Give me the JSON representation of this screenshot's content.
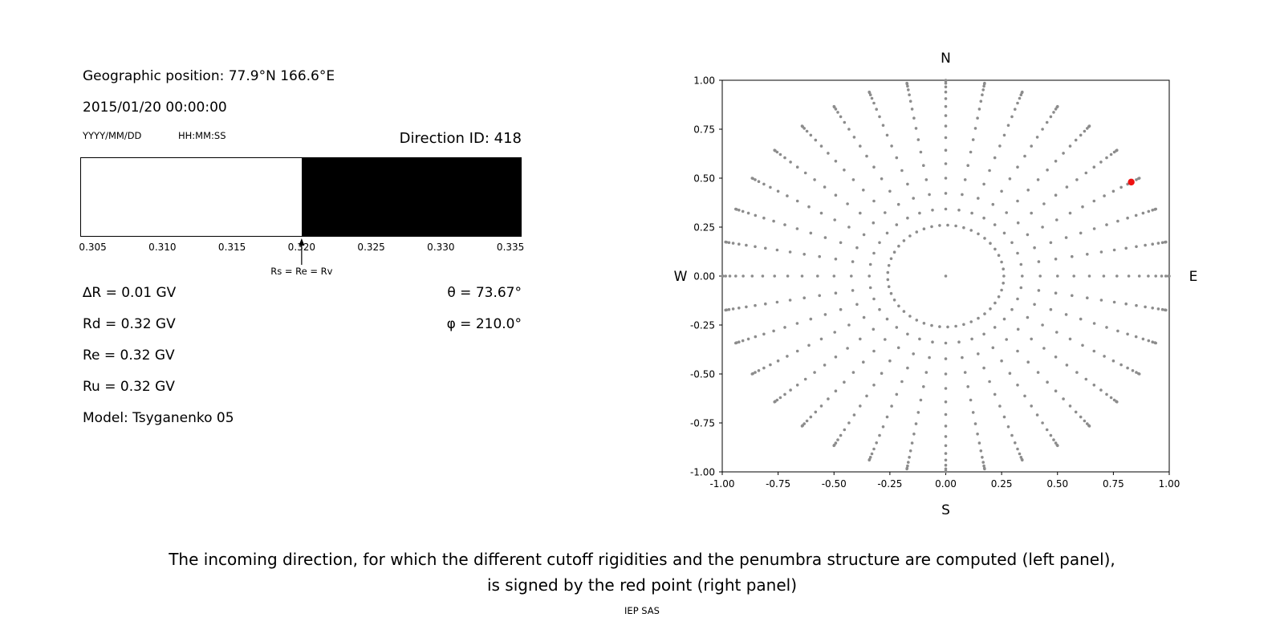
{
  "left_panel": {
    "geo_position": "Geographic position: 77.9°N 166.6°E",
    "datetime": "2015/01/20 00:00:00",
    "date_format_label": "YYYY/MM/DD",
    "time_format_label": "HH:MM:SS",
    "direction_id_label": "Direction ID: 418",
    "params_left": [
      "∆R = 0.01 GV",
      "Rd = 0.32 GV",
      "Re = 0.32 GV",
      "Ru = 0.32 GV",
      "Model: Tsyganenko 05"
    ],
    "params_right": [
      "θ  = 73.67°",
      "φ = 210.0°"
    ]
  },
  "caption": {
    "line1": "The incoming direction, for which the different cutoff rigidities and the penumbra structure are computed (left panel),",
    "line2": "is signed by the red point (right panel)",
    "credit": "IEP SAS"
  },
  "chart_data": [
    {
      "type": "bar",
      "title": "penumbra structure",
      "x_range": [
        0.3041,
        0.3358
      ],
      "x_ticks": [
        "0.305",
        "0.310",
        "0.315",
        "0.320",
        "0.325",
        "0.330",
        "0.335"
      ],
      "x_tick_values": [
        0.305,
        0.31,
        0.315,
        0.32,
        0.325,
        0.33,
        0.335
      ],
      "regions": [
        {
          "from": 0.3041,
          "to": 0.32,
          "color": "#ffffff"
        },
        {
          "from": 0.32,
          "to": 0.3358,
          "color": "#000000"
        }
      ],
      "annotation": {
        "value": 0.32,
        "label": "Rs = Re = Rv"
      }
    },
    {
      "type": "scatter",
      "xlim": [
        -1.0,
        1.0
      ],
      "ylim": [
        -1.0,
        1.0
      ],
      "x_ticks": [
        "-1.00",
        "-0.75",
        "-0.50",
        "-0.25",
        "0.00",
        "0.25",
        "0.50",
        "0.75",
        "1.00"
      ],
      "x_tick_values": [
        -1.0,
        -0.75,
        -0.5,
        -0.25,
        0.0,
        0.25,
        0.5,
        0.75,
        1.0
      ],
      "y_ticks": [
        "-1.00",
        "-0.75",
        "-0.50",
        "-0.25",
        "0.00",
        "0.25",
        "0.50",
        "0.75",
        "1.00"
      ],
      "y_tick_values": [
        -1.0,
        -0.75,
        -0.5,
        -0.25,
        0.0,
        0.25,
        0.5,
        0.75,
        1.0
      ],
      "compass": {
        "top": "N",
        "bottom": "S",
        "left": "W",
        "right": "E"
      },
      "grid": false,
      "dot_color": "#8c8c8c",
      "pattern": {
        "description": "grid of incoming directions: radius = sin(zenith), azimuth spokes",
        "spoke_azimuth_deg": {
          "start": 0,
          "stop": 350,
          "step": 10
        },
        "spoke_zenith_deg": {
          "start": 20,
          "stop": 90,
          "step": 5
        },
        "inner_ring": {
          "radius": 0.26,
          "count": 45
        },
        "center_point": [
          0,
          0
        ]
      },
      "red_point": {
        "x": 0.83,
        "y": 0.48,
        "color": "#ee1111"
      }
    }
  ]
}
